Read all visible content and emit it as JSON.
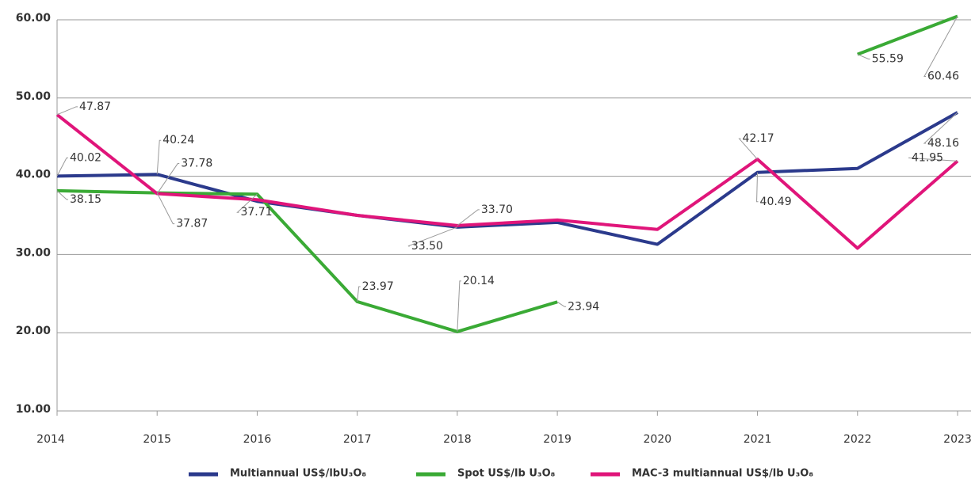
{
  "chart_data": {
    "type": "line",
    "categories": [
      "2014",
      "2015",
      "2016",
      "2017",
      "2018",
      "2019",
      "2020",
      "2021",
      "2022",
      "2023"
    ],
    "series": [
      {
        "name": "Multiannual US$/lbU₃O₈",
        "color": "#2b3a8c",
        "values": [
          40.02,
          40.24,
          36.8,
          35.0,
          33.5,
          34.1,
          31.3,
          40.49,
          41.0,
          48.16
        ],
        "value_labels": [
          "40.02",
          "40.24",
          null,
          null,
          "33.50",
          null,
          null,
          "40.49",
          null,
          "48.16"
        ]
      },
      {
        "name": "Spot US$/lb U₃O₈",
        "color": "#3aaa35",
        "values": [
          38.15,
          37.87,
          37.71,
          23.97,
          20.14,
          23.94,
          null,
          null,
          55.59,
          60.46
        ],
        "value_labels": [
          "38.15",
          "37.87",
          "37.71",
          "23.97",
          "20.14",
          "23.94",
          null,
          null,
          "55.59",
          "60.46"
        ]
      },
      {
        "name": "MAC-3 multiannual US$/lb U₃O₈",
        "color": "#e0157a",
        "values": [
          47.87,
          37.78,
          37.0,
          35.0,
          33.7,
          34.4,
          33.2,
          42.17,
          30.8,
          41.95
        ],
        "value_labels": [
          "47.87",
          "37.78",
          null,
          null,
          "33.70",
          null,
          null,
          "42.17",
          null,
          "41.95"
        ]
      }
    ],
    "ylim": [
      10,
      60
    ],
    "yticks": [
      {
        "value": 10,
        "label": "10.00"
      },
      {
        "value": 20,
        "label": "20.00"
      },
      {
        "value": 30,
        "label": "30.00"
      },
      {
        "value": 40,
        "label": "40.00"
      },
      {
        "value": 50,
        "label": "50.00"
      },
      {
        "value": 60,
        "label": "60.00"
      }
    ],
    "grid": true,
    "legend": "bottom"
  }
}
